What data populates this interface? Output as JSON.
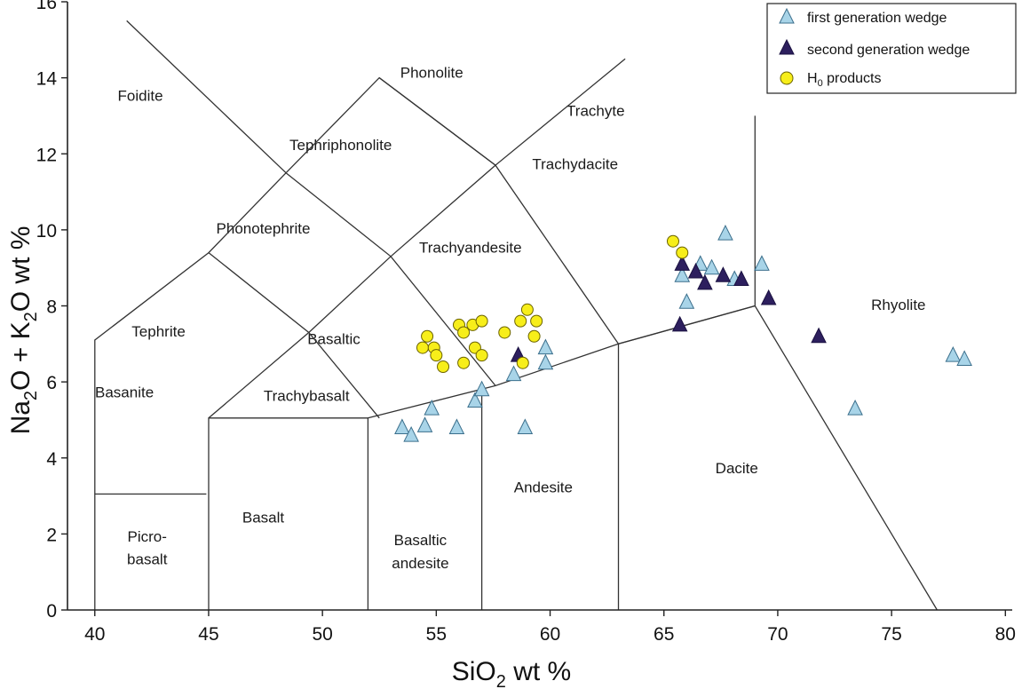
{
  "chart_data": {
    "type": "scatter",
    "title": "",
    "xlabel": {
      "main": "SiO",
      "sub": "2",
      "rest": " wt %"
    },
    "ylabel": {
      "p1": "Na",
      "s1": "2",
      "p2": "O + K",
      "s2": "2",
      "p3": "O wt %"
    },
    "xlim": [
      38.8,
      80.3
    ],
    "ylim": [
      0,
      16
    ],
    "xticks": [
      "40",
      "45",
      "50",
      "55",
      "60",
      "65",
      "70",
      "75",
      "80"
    ],
    "yticks": [
      "0",
      "2",
      "4",
      "6",
      "8",
      "10",
      "12",
      "14",
      "16"
    ],
    "grid": false,
    "legend_position": "top-right",
    "fields": [
      {
        "label": "Foidite",
        "x": 42.0,
        "y": 13.4
      },
      {
        "label": "Phonolite",
        "x": 54.8,
        "y": 14.0
      },
      {
        "label": "Tephriphonolite",
        "x": 50.8,
        "y": 12.1
      },
      {
        "label": "Trachyte",
        "x": 62.0,
        "y": 13.0
      },
      {
        "label": "Trachydacite",
        "x": 61.1,
        "y": 11.6
      },
      {
        "label": "Phonotephrite",
        "x": 47.4,
        "y": 9.9
      },
      {
        "label": "Trachyandesite",
        "x": 56.5,
        "y": 9.4
      },
      {
        "label": "Tephrite",
        "x": 42.8,
        "y": 7.2
      },
      {
        "label": "Basaltic",
        "x": 50.5,
        "y": 7.0
      },
      {
        "label": "Basanite",
        "x": 41.3,
        "y": 5.6
      },
      {
        "label": "Trachybasalt",
        "x": 49.3,
        "y": 5.5
      },
      {
        "label": "Rhyolite",
        "x": 75.3,
        "y": 7.9
      },
      {
        "label": "Dacite",
        "x": 68.2,
        "y": 3.6
      },
      {
        "label": "Andesite",
        "x": 59.7,
        "y": 3.1
      },
      {
        "label": "Basalt",
        "x": 47.4,
        "y": 2.3
      },
      {
        "label": "Picro-",
        "x": 42.3,
        "y": 1.8
      },
      {
        "label": "basalt",
        "x": 42.3,
        "y": 1.2
      },
      {
        "label": "Basaltic",
        "x": 54.3,
        "y": 1.7
      },
      {
        "label": "andesite",
        "x": 54.3,
        "y": 1.1
      }
    ],
    "boundaries": [
      [
        [
          40,
          0
        ],
        [
          40,
          7.1
        ],
        [
          45,
          9.4
        ],
        [
          48.4,
          11.5
        ],
        [
          52.5,
          14
        ],
        [
          57.6,
          11.7
        ],
        [
          63.3,
          14.5
        ]
      ],
      [
        [
          41.4,
          15.5
        ],
        [
          48.4,
          11.5
        ]
      ],
      [
        [
          44.9,
          3.05
        ],
        [
          40,
          3.05
        ]
      ],
      [
        [
          45,
          0
        ],
        [
          45,
          5.05
        ],
        [
          52,
          5.05
        ],
        [
          52,
          0
        ]
      ],
      [
        [
          45,
          9.4
        ],
        [
          49.4,
          7.3
        ],
        [
          52.5,
          5.05
        ]
      ],
      [
        [
          45,
          5.05
        ],
        [
          49.4,
          7.3
        ],
        [
          53,
          9.3
        ],
        [
          57.6,
          11.7
        ],
        [
          63,
          7.0
        ],
        [
          69,
          8.0
        ],
        [
          77,
          0
        ]
      ],
      [
        [
          48.4,
          11.5
        ],
        [
          53,
          9.3
        ],
        [
          57.6,
          5.9
        ],
        [
          63,
          7.0
        ],
        [
          69,
          8.0
        ]
      ],
      [
        [
          52,
          5.05
        ],
        [
          57.6,
          5.9
        ]
      ],
      [
        [
          57,
          5.9
        ],
        [
          57,
          0
        ]
      ],
      [
        [
          63,
          7.0
        ],
        [
          63,
          0
        ]
      ],
      [
        [
          69,
          8.0
        ],
        [
          69,
          13
        ]
      ],
      [
        [
          52.5,
          14
        ],
        [
          57.6,
          11.7
        ]
      ]
    ],
    "legend": [
      {
        "label": "first generation wedge",
        "marker": "triangle",
        "color": "#a8d4e8"
      },
      {
        "label": "second generation wedge",
        "marker": "triangle",
        "color": "#2d1f5e"
      },
      {
        "label": "H",
        "sub": "0",
        "rest": " products",
        "marker": "circle",
        "color": "#f7ee1a"
      }
    ],
    "series": [
      {
        "name": "first generation wedge",
        "marker": "triangle",
        "color": "#a8d4e8",
        "points": [
          [
            53.5,
            4.8
          ],
          [
            53.9,
            4.6
          ],
          [
            54.5,
            4.85
          ],
          [
            54.8,
            5.3
          ],
          [
            55.9,
            4.8
          ],
          [
            56.7,
            5.5
          ],
          [
            57.0,
            5.8
          ],
          [
            58.4,
            6.2
          ],
          [
            58.9,
            4.8
          ],
          [
            59.8,
            6.5
          ],
          [
            59.8,
            6.9
          ],
          [
            65.8,
            8.8
          ],
          [
            66.0,
            8.1
          ],
          [
            66.6,
            9.1
          ],
          [
            67.1,
            9.0
          ],
          [
            67.7,
            9.9
          ],
          [
            68.1,
            8.7
          ],
          [
            69.3,
            9.1
          ],
          [
            73.4,
            5.3
          ],
          [
            77.7,
            6.7
          ],
          [
            78.2,
            6.6
          ]
        ]
      },
      {
        "name": "second generation wedge",
        "marker": "triangle",
        "color": "#2d1f5e",
        "points": [
          [
            58.6,
            6.7
          ],
          [
            65.7,
            7.5
          ],
          [
            65.8,
            9.1
          ],
          [
            66.4,
            8.9
          ],
          [
            66.8,
            8.6
          ],
          [
            67.6,
            8.8
          ],
          [
            68.4,
            8.7
          ],
          [
            69.6,
            8.2
          ],
          [
            71.8,
            7.2
          ]
        ]
      },
      {
        "name": "H0 products",
        "marker": "circle",
        "color": "#f7ee1a",
        "points": [
          [
            54.4,
            6.9
          ],
          [
            54.6,
            7.2
          ],
          [
            54.9,
            6.9
          ],
          [
            55.0,
            6.7
          ],
          [
            55.3,
            6.4
          ],
          [
            56.0,
            7.5
          ],
          [
            56.2,
            7.3
          ],
          [
            56.2,
            6.5
          ],
          [
            56.6,
            7.5
          ],
          [
            56.7,
            6.9
          ],
          [
            57.0,
            7.6
          ],
          [
            57.0,
            6.7
          ],
          [
            58.0,
            7.3
          ],
          [
            58.7,
            7.6
          ],
          [
            58.8,
            6.5
          ],
          [
            59.0,
            7.9
          ],
          [
            59.3,
            7.2
          ],
          [
            59.4,
            7.6
          ],
          [
            65.4,
            9.7
          ],
          [
            65.8,
            9.4
          ]
        ]
      }
    ]
  }
}
